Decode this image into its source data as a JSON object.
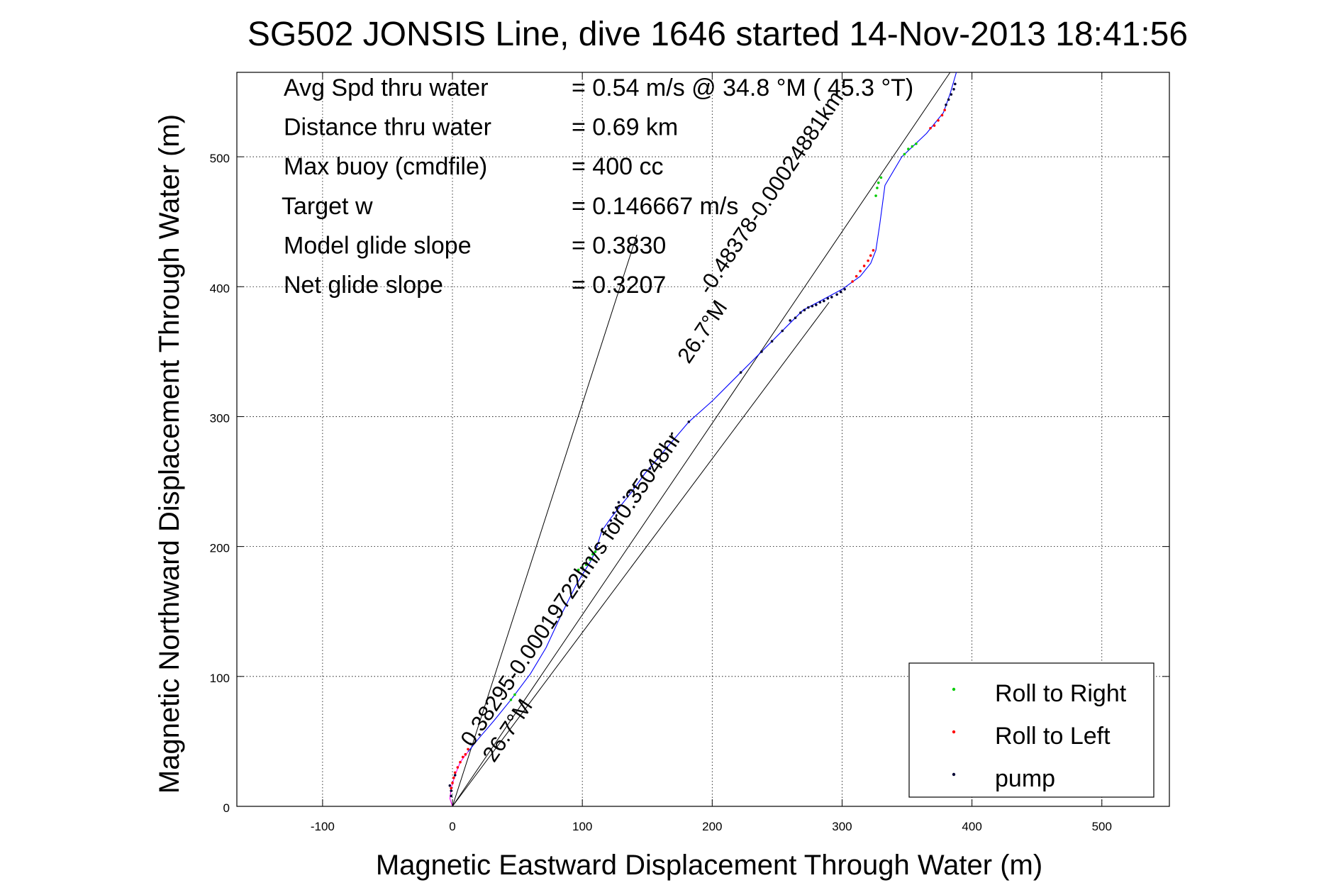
{
  "chart_data": {
    "type": "line",
    "title": "SG502 JONSIS Line, dive 1646 started 14-Nov-2013 18:41:56",
    "xlabel": "Magnetic Eastward Displacement Through Water (m)",
    "ylabel": "Magnetic Northward Displacement Through Water (m)",
    "xlim": [
      -166,
      552
    ],
    "ylim": [
      0,
      565
    ],
    "xticks": [
      -100,
      0,
      100,
      200,
      300,
      400,
      500
    ],
    "xtick_labels": [
      "-100",
      "0",
      "100",
      "200",
      "300",
      "400",
      "500"
    ],
    "yticks": [
      0,
      100,
      200,
      300,
      400,
      500
    ],
    "ytick_labels": [
      "0",
      "100",
      "200",
      "300",
      "400",
      "500"
    ],
    "grid": true,
    "legend_position": "bottom-right",
    "stats": [
      {
        "label": "Avg Spd thru water",
        "value": "=  0.54 m/s @  34.8 °M ( 45.3 °T)"
      },
      {
        "label": "Distance thru water",
        "value": "=  0.69 km"
      },
      {
        "label": "Max buoy (cmdfile)",
        "value": "= 400 cc"
      },
      {
        "label": "Target w",
        "value": "= 0.146667 m/s"
      },
      {
        "label": "Model glide slope",
        "value": "= 0.3830"
      },
      {
        "label": "Net glide slope",
        "value": "= 0.3207"
      }
    ],
    "annotations": [
      {
        "text": "0.38295-0.00019722lm/s for0.35048hr",
        "x": 15,
        "y": 45
      },
      {
        "text": "26.7°M",
        "x": 32,
        "y": 33
      },
      {
        "text": "-0.48378-0.00024881km",
        "x": 198,
        "y": 393
      },
      {
        "text": "26.7°M",
        "x": 182,
        "y": 340
      }
    ],
    "track_segments": [
      {
        "color": "#ff00ff",
        "points": [
          [
            0,
            0
          ],
          [
            -2,
            6
          ],
          [
            -1,
            14
          ],
          [
            2,
            24
          ],
          [
            6,
            34
          ],
          [
            12,
            42
          ]
        ]
      },
      {
        "color": "#0000ff",
        "points": [
          [
            12,
            42
          ],
          [
            20,
            52
          ],
          [
            32,
            66
          ],
          [
            45,
            82
          ],
          [
            60,
            102
          ],
          [
            72,
            122
          ],
          [
            85,
            150
          ],
          [
            95,
            170
          ],
          [
            101,
            180
          ],
          [
            106,
            188
          ],
          [
            110,
            196
          ],
          [
            115,
            212
          ],
          [
            122,
            222
          ],
          [
            130,
            232
          ],
          [
            138,
            242
          ],
          [
            148,
            256
          ],
          [
            165,
            276
          ],
          [
            182,
            296
          ],
          [
            200,
            312
          ],
          [
            222,
            334
          ],
          [
            240,
            352
          ],
          [
            258,
            370
          ],
          [
            270,
            382
          ],
          [
            285,
            390
          ],
          [
            300,
            398
          ],
          [
            314,
            408
          ],
          [
            322,
            418
          ],
          [
            326,
            428
          ],
          [
            329,
            448
          ],
          [
            333,
            478
          ],
          [
            346,
            500
          ],
          [
            365,
            518
          ],
          [
            378,
            534
          ],
          [
            383,
            548
          ],
          [
            388,
            565
          ]
        ]
      }
    ],
    "reference_lines": [
      {
        "x": [
          0,
          142
        ],
        "y": [
          0,
          440
        ]
      },
      {
        "x": [
          0,
          290
        ],
        "y": [
          0,
          388
        ]
      },
      {
        "x": [
          0,
          392
        ],
        "y": [
          0,
          578
        ]
      }
    ],
    "series": [
      {
        "name": "Roll to Right",
        "color": "#00cc00",
        "points": [
          [
            45,
            82
          ],
          [
            48,
            86
          ],
          [
            97,
            182
          ],
          [
            100,
            184
          ],
          [
            103,
            186
          ],
          [
            106,
            190
          ],
          [
            108,
            194
          ],
          [
            110,
            196
          ],
          [
            326,
            470
          ],
          [
            327,
            476
          ],
          [
            328,
            480
          ],
          [
            330,
            484
          ],
          [
            348,
            502
          ],
          [
            351,
            506
          ],
          [
            354,
            508
          ],
          [
            357,
            510
          ]
        ]
      },
      {
        "name": "Roll to Left",
        "color": "#ff0000",
        "points": [
          [
            -1,
            14
          ],
          [
            0,
            18
          ],
          [
            1,
            22
          ],
          [
            2,
            26
          ],
          [
            4,
            30
          ],
          [
            6,
            34
          ],
          [
            8,
            38
          ],
          [
            10,
            40
          ],
          [
            12,
            44
          ],
          [
            308,
            404
          ],
          [
            311,
            408
          ],
          [
            314,
            412
          ],
          [
            317,
            416
          ],
          [
            320,
            420
          ],
          [
            322,
            424
          ],
          [
            324,
            428
          ],
          [
            368,
            522
          ],
          [
            371,
            524
          ],
          [
            374,
            528
          ],
          [
            377,
            532
          ],
          [
            379,
            536
          ]
        ]
      },
      {
        "name": "pump",
        "color": "#000033",
        "points": [
          [
            -1,
            8
          ],
          [
            -1,
            12
          ],
          [
            -2,
            16
          ],
          [
            2,
            24
          ],
          [
            14,
            48
          ],
          [
            120,
            216
          ],
          [
            122,
            220
          ],
          [
            124,
            226
          ],
          [
            126,
            230
          ],
          [
            128,
            234
          ],
          [
            132,
            238
          ],
          [
            136,
            242
          ],
          [
            140,
            246
          ],
          [
            146,
            254
          ],
          [
            152,
            260
          ],
          [
            158,
            268
          ],
          [
            165,
            276
          ],
          [
            182,
            296
          ],
          [
            222,
            334
          ],
          [
            238,
            350
          ],
          [
            246,
            358
          ],
          [
            254,
            366
          ],
          [
            260,
            374
          ],
          [
            264,
            376
          ],
          [
            268,
            380
          ],
          [
            271,
            382
          ],
          [
            274,
            384
          ],
          [
            277,
            385
          ],
          [
            280,
            386
          ],
          [
            283,
            388
          ],
          [
            286,
            389
          ],
          [
            289,
            391
          ],
          [
            292,
            392
          ],
          [
            296,
            394
          ],
          [
            299,
            396
          ],
          [
            302,
            398
          ],
          [
            380,
            540
          ],
          [
            382,
            544
          ],
          [
            384,
            548
          ],
          [
            386,
            552
          ],
          [
            387,
            556
          ]
        ]
      }
    ]
  }
}
